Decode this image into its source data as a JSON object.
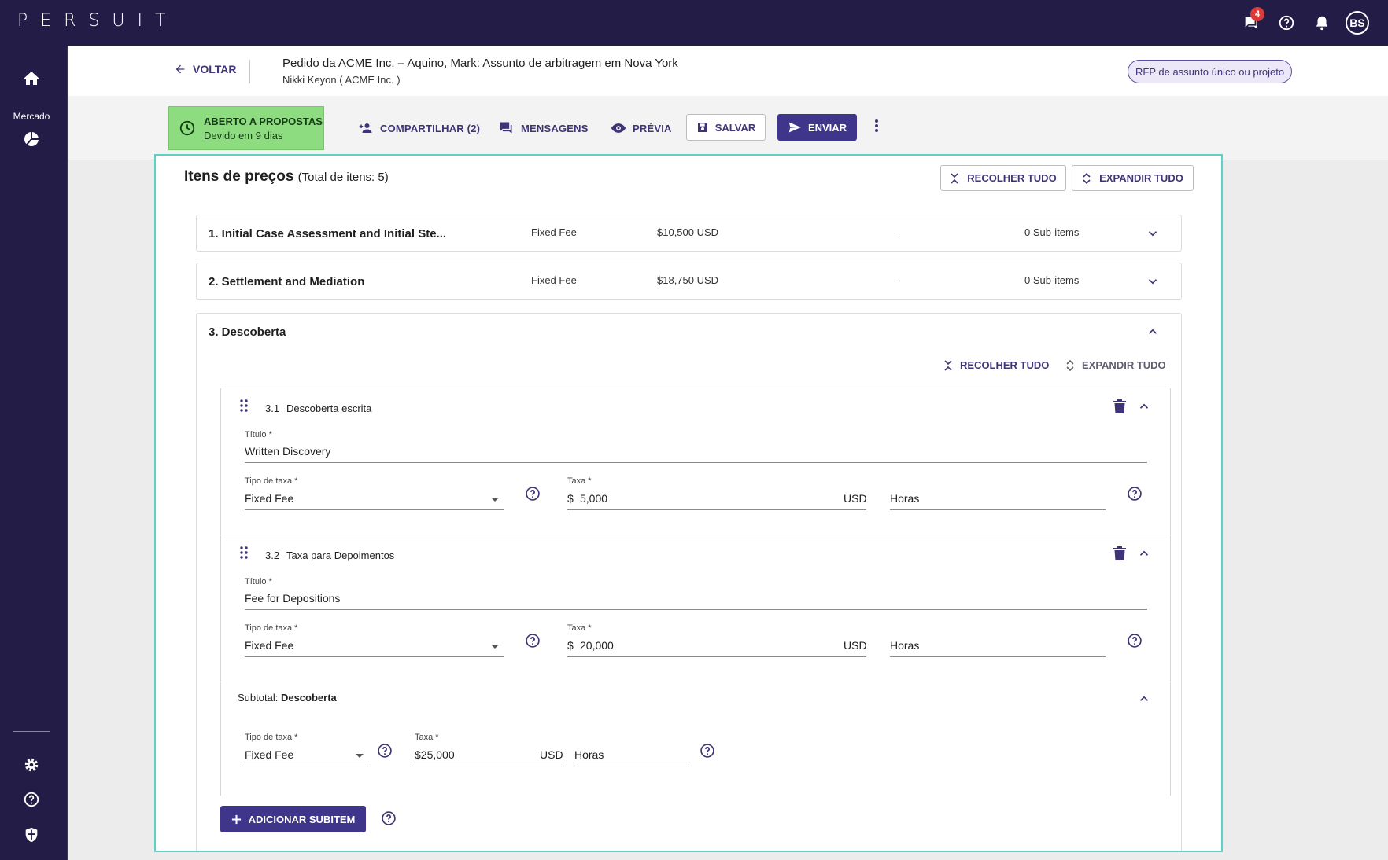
{
  "app": {
    "logo": "PERSUIT",
    "notification_count": "4",
    "avatar_initials": "BS"
  },
  "sidebar": {
    "market_label": "Mercado"
  },
  "header": {
    "back_label": "VOLTAR",
    "title": "Pedido da ACME Inc. – Aquino, Mark: Assunto de arbitragem em Nova York",
    "subtitle": "Nikki Keyon ( ACME Inc. )",
    "rfp_type": "RFP de assunto único ou projeto"
  },
  "toolbar": {
    "status_line1": "ABERTO A PROPOSTAS",
    "status_line2": "Devido em 9 dias",
    "share_label": "COMPARTILHAR (2)",
    "messages_label": "MENSAGENS",
    "preview_label": "PRÉVIA",
    "save_label": "SALVAR",
    "send_label": "ENVIAR"
  },
  "pricing": {
    "title": "Itens de preços",
    "total": "(Total de itens: 5)",
    "collapse_all": "RECOLHER TUDO",
    "expand_all": "EXPANDIR TUDO",
    "items": [
      {
        "name": "1. Initial Case Assessment and Initial Ste...",
        "fee_type": "Fixed Fee",
        "amount": "$10,500 USD",
        "extra": "-",
        "subitems": "0 Sub-items"
      },
      {
        "name": "2. Settlement and Mediation",
        "fee_type": "Fixed Fee",
        "amount": "$18,750 USD",
        "extra": "-",
        "subitems": "0 Sub-items"
      }
    ],
    "discovery": {
      "name": "3. Descoberta",
      "collapse_all": "RECOLHER TUDO",
      "expand_all": "EXPANDIR TUDO",
      "subitems": [
        {
          "num": "3.1",
          "name": "Descoberta escrita",
          "title_label": "Título *",
          "title_value": "Written Discovery",
          "fee_type_label": "Tipo de taxa *",
          "fee_type": "Fixed Fee",
          "rate_label": "Taxa *",
          "currency_symbol": "$",
          "rate_value": "5,000",
          "currency": "USD",
          "unit": "Horas"
        },
        {
          "num": "3.2",
          "name": "Taxa para Depoimentos",
          "title_label": "Título *",
          "title_value": "Fee for Depositions",
          "fee_type_label": "Tipo de taxa *",
          "fee_type": "Fixed Fee",
          "rate_label": "Taxa *",
          "currency_symbol": "$",
          "rate_value": "20,000",
          "currency": "USD",
          "unit": "Horas"
        }
      ],
      "subtotal": {
        "label": "Subtotal:",
        "name": "Descoberta",
        "fee_type_label": "Tipo de taxa *",
        "fee_type": "Fixed Fee",
        "rate_label": "Taxa *",
        "rate_value": "$25,000",
        "currency": "USD",
        "unit": "Horas"
      },
      "add_subitem": "ADICIONAR SUBITEM"
    }
  },
  "colors": {
    "brand_dark": "#231c47",
    "accent": "#3f358a",
    "status_green": "#8ddc7f",
    "focus_outline": "#5fd0c8"
  }
}
